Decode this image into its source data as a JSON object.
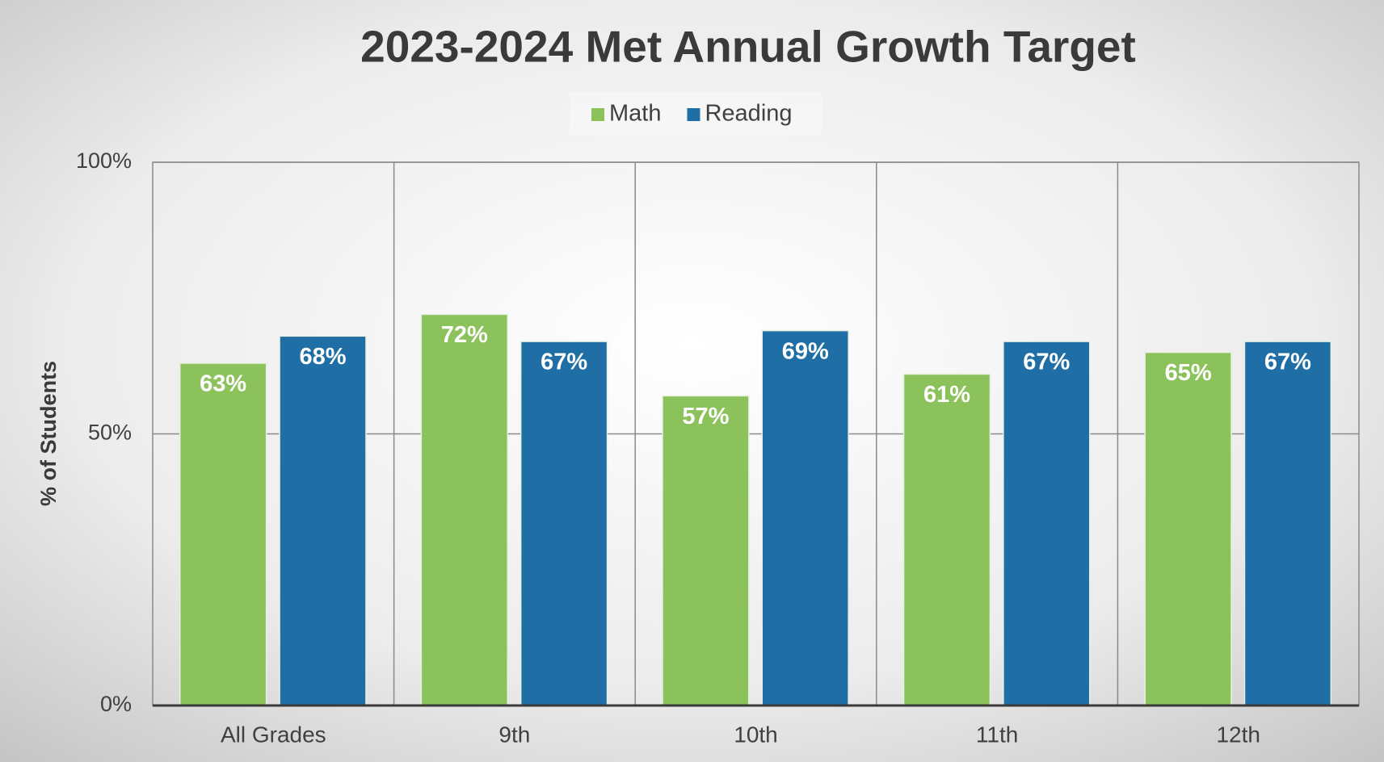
{
  "chart_data": {
    "type": "bar",
    "title": "2023-2024 Met Annual Growth Target",
    "y_label": "% of Students",
    "categories": [
      "All Grades",
      "9th",
      "10th",
      "11th",
      "12th"
    ],
    "series": [
      {
        "name": "Math",
        "color": "#8cc25c",
        "values": [
          63,
          72,
          57,
          61,
          65
        ],
        "value_labels": [
          "63%",
          "72%",
          "57%",
          "61%",
          "65%"
        ]
      },
      {
        "name": "Reading",
        "color": "#1f6ea6",
        "values": [
          68,
          67,
          69,
          67,
          67
        ],
        "value_labels": [
          "68%",
          "67%",
          "69%",
          "67%",
          "67%"
        ]
      }
    ],
    "ylim": [
      0,
      100
    ],
    "yticks": [
      {
        "value": 0,
        "label": "0%"
      },
      {
        "value": 50,
        "label": "50%"
      },
      {
        "value": 100,
        "label": "100%"
      }
    ],
    "grid": true,
    "legend": "top"
  }
}
